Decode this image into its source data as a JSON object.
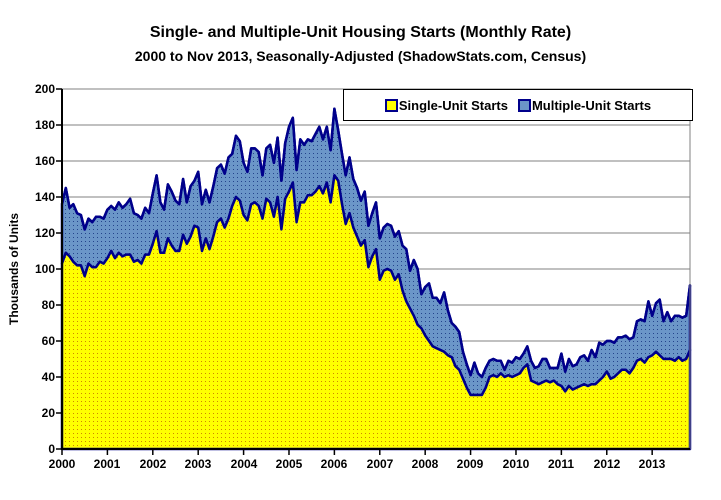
{
  "title": "Single- and Multiple-Unit Housing Starts (Monthly Rate)",
  "subtitle": "2000 to Nov 2013, Seasonally-Adjusted (ShadowStats.com, Census)",
  "legend": {
    "single_label": "Single-Unit Starts",
    "multiple_label": "Multiple-Unit Starts"
  },
  "colors": {
    "single_fill": "#FFFF00",
    "single_dot": "#CC8800",
    "multiple_fill": "#6B96C8",
    "multiple_dot": "#24448C",
    "series_outline": "#00008B",
    "gridline": "#808080",
    "axis": "#000000"
  },
  "chart_data": {
    "type": "area",
    "stacked": true,
    "title": "Single- and Multiple-Unit Housing Starts (Monthly Rate)",
    "subtitle": "2000 to Nov 2013, Seasonally-Adjusted (ShadowStats.com, Census)",
    "xlabel": "",
    "ylabel": "Thousands of Units",
    "ylim": [
      0,
      200
    ],
    "ytick_step": 20,
    "grid": "horizontal",
    "legend_position": "top-right",
    "frequency": "monthly",
    "x_start": "2000-01",
    "x_end": "2013-11",
    "yticks": [
      "200",
      "180",
      "160",
      "140",
      "120",
      "100",
      "80",
      "60",
      "40",
      "20",
      "0"
    ],
    "xticks": [
      "2000",
      "2001",
      "2002",
      "2003",
      "2004",
      "2005",
      "2006",
      "2007",
      "2008",
      "2009",
      "2010",
      "2011",
      "2012",
      "2013"
    ],
    "series": [
      {
        "name": "Single-Unit Starts",
        "values": [
          103,
          109,
          107,
          104,
          102,
          102,
          96,
          103,
          101,
          101,
          104,
          103,
          106,
          110,
          106,
          109,
          107,
          108,
          108,
          104,
          105,
          103,
          108,
          108,
          114,
          121,
          109,
          109,
          117,
          113,
          110,
          110,
          119,
          114,
          118,
          124,
          123,
          110,
          117,
          111,
          118,
          126,
          128,
          123,
          128,
          135,
          140,
          138,
          130,
          127,
          136,
          137,
          135,
          128,
          139,
          137,
          129,
          140,
          122,
          139,
          143,
          148,
          126,
          137,
          137,
          141,
          141,
          143,
          146,
          142,
          148,
          137,
          152,
          149,
          136,
          125,
          131,
          123,
          118,
          113,
          116,
          101,
          107,
          111,
          94,
          99,
          100,
          99,
          94,
          97,
          88,
          82,
          78,
          74,
          69,
          67,
          63,
          60,
          57,
          56,
          55,
          54,
          52,
          51,
          46,
          44,
          39,
          34,
          30,
          30,
          30,
          30,
          34,
          40,
          41,
          40,
          42,
          40,
          41,
          40,
          41,
          42,
          45,
          47,
          38,
          37,
          36,
          37,
          38,
          37,
          38,
          36,
          35,
          32,
          35,
          33,
          34,
          35,
          36,
          35,
          36,
          36,
          38,
          40,
          43,
          39,
          40,
          42,
          44,
          44,
          42,
          45,
          49,
          50,
          48,
          51,
          52,
          54,
          52,
          50,
          50,
          50,
          49,
          51,
          49,
          50,
          55
        ]
      },
      {
        "name": "Multiple-Unit Starts",
        "values": [
          33,
          36,
          27,
          32,
          29,
          28,
          26,
          25,
          25,
          28,
          25,
          25,
          27,
          25,
          27,
          28,
          27,
          28,
          31,
          27,
          25,
          25,
          26,
          23,
          28,
          31,
          28,
          24,
          30,
          30,
          28,
          26,
          31,
          23,
          28,
          25,
          31,
          26,
          27,
          26,
          28,
          30,
          30,
          30,
          34,
          29,
          34,
          33,
          29,
          27,
          31,
          30,
          30,
          24,
          28,
          32,
          30,
          33,
          27,
          31,
          36,
          36,
          29,
          35,
          32,
          31,
          30,
          32,
          33,
          30,
          31,
          29,
          37,
          28,
          28,
          27,
          31,
          27,
          27,
          25,
          27,
          23,
          24,
          26,
          23,
          24,
          25,
          25,
          24,
          24,
          25,
          29,
          21,
          31,
          31,
          19,
          27,
          32,
          27,
          28,
          26,
          33,
          25,
          19,
          22,
          21,
          15,
          13,
          11,
          18,
          12,
          10,
          11,
          9,
          9,
          9,
          7,
          4,
          8,
          8,
          10,
          8,
          8,
          10,
          11,
          8,
          10,
          13,
          12,
          8,
          7,
          9,
          18,
          11,
          15,
          13,
          13,
          16,
          16,
          14,
          19,
          15,
          21,
          18,
          17,
          21,
          19,
          20,
          18,
          19,
          19,
          17,
          22,
          22,
          23,
          31,
          22,
          27,
          31,
          21,
          26,
          21,
          25,
          23,
          24,
          24,
          36
        ]
      }
    ]
  }
}
